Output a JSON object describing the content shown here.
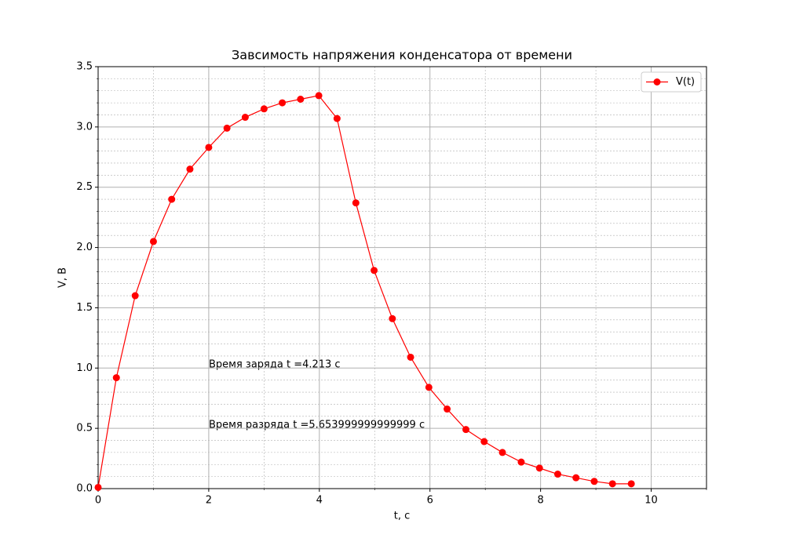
{
  "chart_data": {
    "type": "line",
    "title": "Завсимость напряжения конденсатора от времени",
    "x_label": "t, с",
    "y_label": "V, В",
    "x": [
      0,
      0.33,
      0.67,
      1.0,
      1.33,
      1.66,
      2.0,
      2.33,
      2.66,
      3.0,
      3.33,
      3.66,
      3.99,
      4.32,
      4.66,
      4.99,
      5.32,
      5.65,
      5.98,
      6.31,
      6.65,
      6.98,
      7.31,
      7.65,
      7.98,
      8.31,
      8.64,
      8.97,
      9.3,
      9.64
    ],
    "series": [
      {
        "name": "V(t)",
        "color": "#ff0000",
        "values": [
          0.01,
          0.92,
          1.6,
          2.05,
          2.4,
          2.65,
          2.83,
          2.99,
          3.08,
          3.15,
          3.2,
          3.23,
          3.26,
          3.07,
          2.37,
          1.81,
          1.41,
          1.09,
          0.84,
          0.66,
          0.49,
          0.39,
          0.3,
          0.22,
          0.17,
          0.12,
          0.09,
          0.06,
          0.04,
          0.04
        ]
      }
    ],
    "xlim": [
      0,
      11
    ],
    "ylim": [
      0,
      3.5
    ],
    "xticks": [
      0,
      2,
      4,
      6,
      8,
      10
    ],
    "yticks": [
      {
        "value": 0,
        "label": "0.0"
      },
      {
        "value": 0.5,
        "label": "0.5"
      },
      {
        "value": 1,
        "label": "1.0"
      },
      {
        "value": 1.5,
        "label": "1.5"
      },
      {
        "value": 2,
        "label": "2.0"
      },
      {
        "value": 2.5,
        "label": "2.5"
      },
      {
        "value": 3,
        "label": "3.0"
      },
      {
        "value": 3.5,
        "label": "3.5"
      }
    ],
    "xminorticks": [
      1,
      3,
      5,
      7,
      9,
      11
    ],
    "yminorticks": [
      0.1,
      0.2,
      0.3,
      0.4,
      0.6,
      0.7,
      0.8,
      0.9,
      1.1,
      1.2,
      1.3,
      1.4,
      1.6,
      1.7,
      1.8,
      1.9,
      2.1,
      2.2,
      2.3,
      2.4,
      2.6,
      2.7,
      2.8,
      2.9,
      3.1,
      3.2,
      3.3,
      3.4
    ],
    "grid": true,
    "legend": "upper right",
    "annotations": [
      "Время заряда t =4.213 с",
      "Время разряда t =5.653999999999999 с"
    ]
  }
}
